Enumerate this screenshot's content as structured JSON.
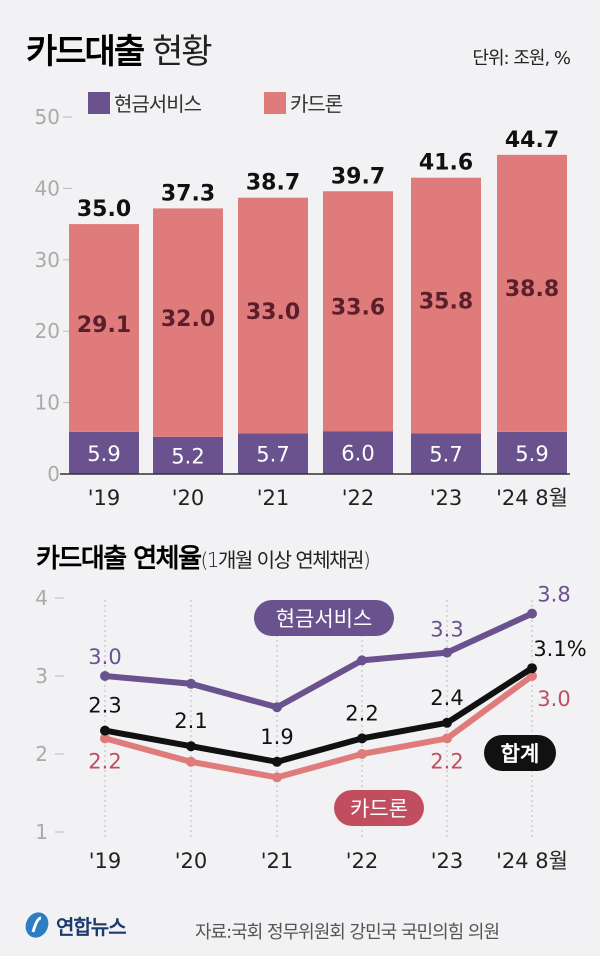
{
  "header": {
    "title_bold": "카드대출",
    "title_light": "현황",
    "unit": "단위: 조원, %"
  },
  "colors": {
    "cash_service": "#6a528f",
    "card_loan": "#e07b7b",
    "total": "#111111",
    "background": "#f2f2f4",
    "card_loan_label": "#c04e5e"
  },
  "legend": {
    "cash_service": "현금서비스",
    "card_loan": "카드론"
  },
  "chart_data": [
    {
      "type": "bar",
      "stacked": true,
      "categories": [
        "'19",
        "'20",
        "'21",
        "'22",
        "'23",
        "'24 8월"
      ],
      "ylim": [
        0,
        50
      ],
      "yticks": [
        0,
        10,
        20,
        30,
        40,
        50
      ],
      "series": [
        {
          "name": "현금서비스",
          "values": [
            5.9,
            5.2,
            5.7,
            6.0,
            5.7,
            5.9
          ]
        },
        {
          "name": "카드론",
          "values": [
            29.1,
            32.0,
            33.0,
            33.6,
            35.8,
            38.8
          ]
        }
      ],
      "totals": [
        "35.0",
        "37.3",
        "38.7",
        "39.7",
        "41.6",
        "44.7"
      ]
    },
    {
      "type": "line",
      "title_bold": "카드대출 연체율",
      "title_note": "(1개월 이상 연체채권)",
      "categories": [
        "'19",
        "'20",
        "'21",
        "'22",
        "'23",
        "'24 8월"
      ],
      "ylim": [
        1,
        4
      ],
      "yticks": [
        1,
        2,
        3,
        4
      ],
      "series": [
        {
          "name": "현금서비스",
          "values": [
            3.0,
            2.9,
            2.6,
            3.2,
            3.3,
            3.8
          ],
          "labels": [
            "3.0",
            "",
            "",
            "",
            "3.3",
            "3.8"
          ]
        },
        {
          "name": "합계",
          "values": [
            2.3,
            2.1,
            1.9,
            2.2,
            2.4,
            3.1
          ],
          "labels": [
            "2.3",
            "2.1",
            "1.9",
            "2.2",
            "2.4",
            "3.1%"
          ]
        },
        {
          "name": "카드론",
          "values": [
            2.2,
            1.9,
            1.7,
            2.0,
            2.2,
            3.0
          ],
          "labels": [
            "2.2",
            "",
            "",
            "",
            "2.2",
            "3.0"
          ]
        }
      ]
    }
  ],
  "footer": {
    "logo": "연합뉴스",
    "source": "자료:국회 정무위원회 강민국 국민의힘 의원"
  }
}
